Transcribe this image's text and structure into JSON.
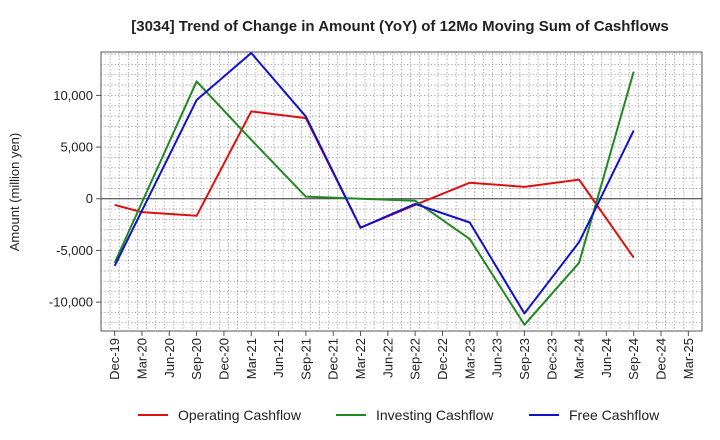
{
  "chart_data": {
    "type": "line",
    "title": "[3034]  Trend of Change in Amount (YoY) of 12Mo Moving Sum of Cashflows",
    "ylabel": "Amount (million yen)",
    "xlabel": "",
    "ylim": [
      -12800,
      14200
    ],
    "yticks": [
      -10000,
      -5000,
      0,
      5000,
      10000
    ],
    "ytick_labels": [
      "-10,000",
      "-5,000",
      "0",
      "5,000",
      "10,000"
    ],
    "categories": [
      "Dec-19",
      "Mar-20",
      "Jun-20",
      "Sep-20",
      "Dec-20",
      "Mar-21",
      "Jun-21",
      "Sep-21",
      "Dec-21",
      "Mar-22",
      "Jun-22",
      "Sep-22",
      "Dec-22",
      "Mar-23",
      "Jun-23",
      "Sep-23",
      "Dec-23",
      "Mar-24",
      "Jun-24",
      "Sep-24",
      "Dec-24",
      "Mar-25"
    ],
    "grid": true,
    "legend_position": "bottom",
    "series": [
      {
        "name": "Operating Cashflow",
        "color": "#dd1111",
        "values": [
          -600,
          -1300,
          null,
          -1650,
          null,
          8450,
          null,
          7800,
          null,
          -2800,
          null,
          -600,
          null,
          1550,
          null,
          1150,
          null,
          1850,
          null,
          -5700,
          null,
          null
        ]
      },
      {
        "name": "Investing Cashflow",
        "color": "#228822",
        "values": [
          -6200,
          null,
          null,
          11350,
          null,
          5700,
          null,
          200,
          null,
          0,
          null,
          -200,
          null,
          -3900,
          null,
          -12200,
          null,
          -6200,
          null,
          12300,
          null,
          null
        ]
      },
      {
        "name": "Free Cashflow",
        "color": "#1111cc",
        "values": [
          -6500,
          null,
          null,
          9550,
          null,
          14100,
          null,
          7950,
          null,
          -2800,
          null,
          -500,
          null,
          -2300,
          null,
          -11100,
          null,
          -4200,
          null,
          6600,
          null,
          null
        ]
      }
    ]
  }
}
